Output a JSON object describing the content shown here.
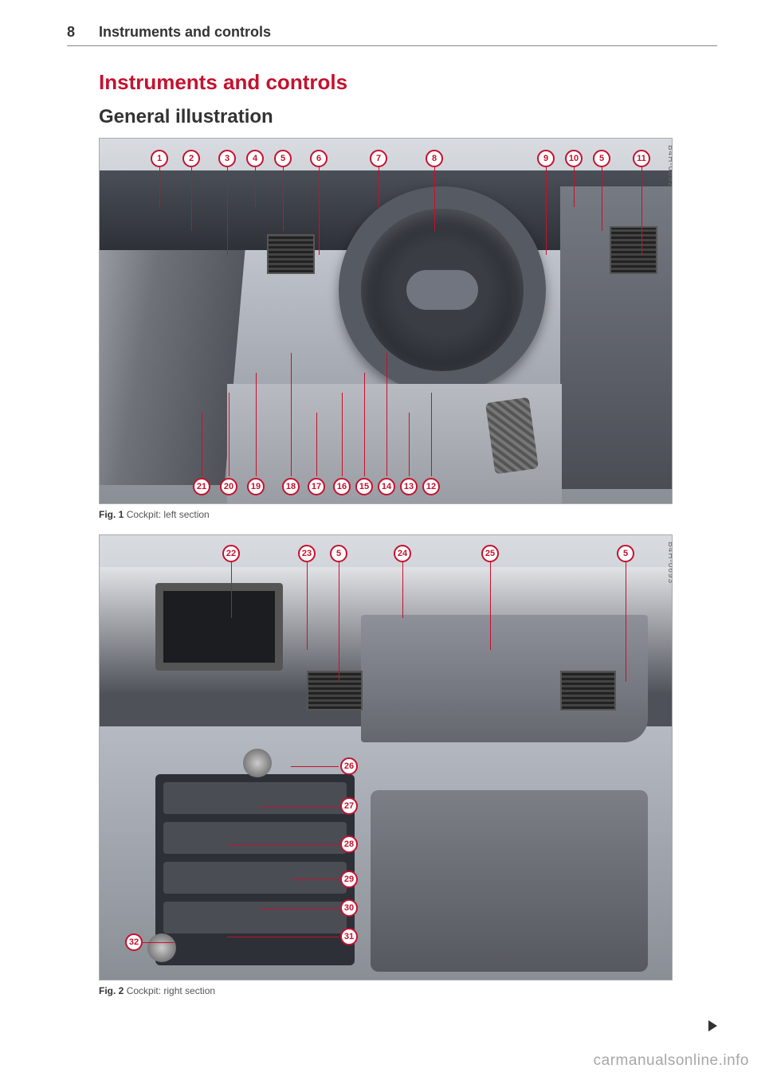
{
  "page_number": "8",
  "header_title": "Instruments and controls",
  "section_title": "Instruments and controls",
  "sub_title": "General illustration",
  "accent_color": "#c4122f",
  "fig1": {
    "caption_bold": "Fig. 1",
    "caption_text": "Cockpit: left section",
    "side_code": "B4H-0692",
    "top_callouts": [
      "1",
      "2",
      "3",
      "4",
      "5",
      "6",
      "7",
      "8",
      "9",
      "10",
      "5",
      "11"
    ],
    "bottom_callouts": [
      "21",
      "20",
      "19",
      "18",
      "17",
      "16",
      "15",
      "14",
      "13",
      "12"
    ]
  },
  "fig2": {
    "caption_bold": "Fig. 2",
    "caption_text": "Cockpit: right section",
    "side_code": "B4H-0693",
    "top_callouts": [
      "22",
      "23",
      "5",
      "24",
      "25",
      "5"
    ],
    "side_callouts": [
      "26",
      "27",
      "28",
      "29",
      "30",
      "31"
    ],
    "left_callout": "32"
  },
  "watermark": "carmanualsonline.info"
}
